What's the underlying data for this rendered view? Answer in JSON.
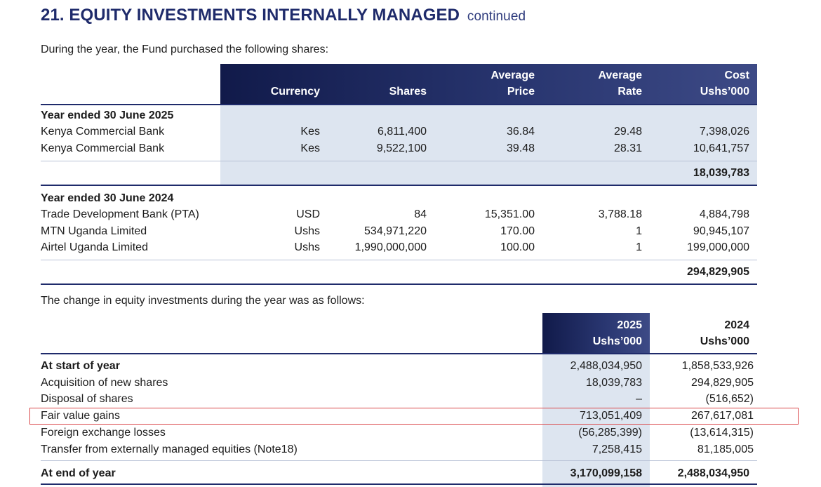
{
  "header": {
    "title": "21. EQUITY INVESTMENTS INTERNALLY MANAGED",
    "continued": "continued"
  },
  "purchases": {
    "intro": "During the year, the Fund purchased the following shares:",
    "columns": {
      "currency": "Currency",
      "shares": "Shares",
      "avg_price_1": "Average",
      "avg_price_2": "Price",
      "avg_rate_1": "Average",
      "avg_rate_2": "Rate",
      "cost_1": "Cost",
      "cost_2": "Ushs’000"
    },
    "year2025": {
      "heading": "Year ended 30 June 2025",
      "rows": [
        {
          "name": "Kenya Commercial Bank",
          "currency": "Kes",
          "shares": "6,811,400",
          "price": "36.84",
          "rate": "29.48",
          "cost": "7,398,026"
        },
        {
          "name": "Kenya Commercial Bank",
          "currency": "Kes",
          "shares": "9,522,100",
          "price": "39.48",
          "rate": "28.31",
          "cost": "10,641,757"
        }
      ],
      "total": "18,039,783"
    },
    "year2024": {
      "heading": "Year ended 30 June 2024",
      "rows": [
        {
          "name": "Trade Development Bank (PTA)",
          "currency": "USD",
          "shares": "84",
          "price": "15,351.00",
          "rate": "3,788.18",
          "cost": "4,884,798"
        },
        {
          "name": "MTN Uganda Limited",
          "currency": "Ushs",
          "shares": "534,971,220",
          "price": "170.00",
          "rate": "1",
          "cost": "90,945,107"
        },
        {
          "name": "Airtel Uganda Limited",
          "currency": "Ushs",
          "shares": "1,990,000,000",
          "price": "100.00",
          "rate": "1",
          "cost": "199,000,000"
        }
      ],
      "total": "294,829,905"
    }
  },
  "movement": {
    "intro": "The change in equity investments during the year was as follows:",
    "col2025_1": "2025",
    "col2025_2": "Ushs’000",
    "col2024_1": "2024",
    "col2024_2": "Ushs’000",
    "rows": [
      {
        "label": "At start of year",
        "v2025": "2,488,034,950",
        "v2024": "1,858,533,926"
      },
      {
        "label": "Acquisition of new shares",
        "v2025": "18,039,783",
        "v2024": "294,829,905"
      },
      {
        "label": "Disposal of shares",
        "v2025": "–",
        "v2024": "(516,652)"
      },
      {
        "label": "Fair value gains",
        "v2025": "713,051,409",
        "v2024": "267,617,081"
      },
      {
        "label": "Foreign exchange losses",
        "v2025": "(56,285,399)",
        "v2024": "(13,614,315)"
      },
      {
        "label": "Transfer from externally managed equities (Note18)",
        "v2025": "7,258,415",
        "v2024": "81,185,005"
      }
    ],
    "end_label": "At end of year",
    "end_2025": "3,170,099,158",
    "end_2024": "2,488,034,950"
  }
}
